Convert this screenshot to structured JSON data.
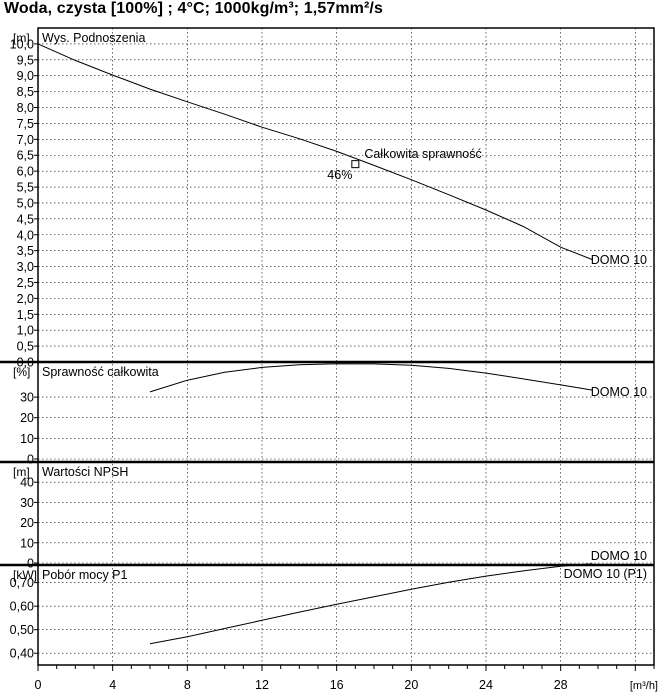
{
  "page": {
    "title": "Woda, czysta [100%] ; 4°C; 1000kg/m³; 1,57mm²/s"
  },
  "colors": {
    "line": "#000000",
    "frame": "#000000",
    "grid": "#000000"
  },
  "chart_data": {
    "type": "line",
    "x_axis": {
      "unit": "[m³/h]",
      "range": [
        0,
        33
      ],
      "tick_labels": [
        "0",
        "4",
        "8",
        "12",
        "16",
        "20",
        "24",
        "28"
      ],
      "tick_values": [
        0,
        4,
        8,
        12,
        16,
        20,
        24,
        28
      ]
    },
    "panels": [
      {
        "id": "head",
        "label": "Wys. Podnoszenia",
        "unit": "[m]",
        "ylim": [
          0,
          10.5
        ],
        "tick_labels": [
          "0,0",
          "0,5",
          "1,0",
          "1,5",
          "2,0",
          "2,5",
          "3,0",
          "3,5",
          "4,0",
          "4,5",
          "5,0",
          "5,5",
          "6,0",
          "6,5",
          "7,0",
          "7,5",
          "8,0",
          "8,5",
          "9,0",
          "9,5",
          "10,0"
        ],
        "tick_values": [
          0,
          0.5,
          1,
          1.5,
          2,
          2.5,
          3,
          3.5,
          4,
          4.5,
          5,
          5.5,
          6,
          6.5,
          7,
          7.5,
          8,
          8.5,
          9,
          9.5,
          10
        ],
        "series": [
          {
            "name": "DOMO 10",
            "x": [
              0,
              2,
              4,
              6,
              8,
              10,
              12,
              14,
              16,
              18,
              20,
              22,
              24,
              26,
              28,
              29.7
            ],
            "y": [
              10.0,
              9.48,
              9.02,
              8.58,
              8.18,
              7.79,
              7.38,
              7.02,
              6.62,
              6.18,
              5.73,
              5.26,
              4.78,
              4.26,
              3.61,
              3.22
            ]
          }
        ],
        "annotations": [
          {
            "text": "Całkowita sprawność",
            "x": 17,
            "y": 6.22,
            "marker": "square"
          },
          {
            "text": "46%",
            "x": 17,
            "y": 6.22
          }
        ]
      },
      {
        "id": "efficiency",
        "label": "Sprawność całkowita",
        "unit": "[%]",
        "ylim": [
          0,
          47
        ],
        "tick_labels": [
          "0",
          "10",
          "20",
          "30"
        ],
        "tick_values": [
          0,
          10,
          20,
          30
        ],
        "series": [
          {
            "name": "DOMO 10",
            "x": [
              6,
              8,
              10,
              12,
              14,
              16,
              18,
              20,
              22,
              24,
              26,
              28,
              29.7
            ],
            "y": [
              32.5,
              38.2,
              42.0,
              44.4,
              45.7,
              46.2,
              46.1,
              45.4,
              43.9,
              41.6,
              38.8,
              35.9,
              33.4
            ]
          }
        ]
      },
      {
        "id": "npsh",
        "label": "Wartości NPSH",
        "unit": "[m]",
        "ylim": [
          0,
          50
        ],
        "tick_labels": [
          "0",
          "10",
          "20",
          "30",
          "40"
        ],
        "tick_values": [
          0,
          10,
          20,
          30,
          40
        ],
        "series": [
          {
            "name": "DOMO 10",
            "x": [],
            "y": []
          }
        ]
      },
      {
        "id": "power",
        "label": "Pobór mocy P1",
        "unit": "[kW]",
        "ylim": [
          0.35,
          0.775
        ],
        "tick_labels": [
          "0,40",
          "0,50",
          "0,60",
          "0,70"
        ],
        "tick_values": [
          0.4,
          0.5,
          0.6,
          0.7
        ],
        "series": [
          {
            "name": "DOMO 10 (P1)",
            "x": [
              6,
              8,
              10,
              12,
              14,
              16,
              18,
              20,
              22,
              24,
              26,
              28,
              29.7
            ],
            "y": [
              0.44,
              0.47,
              0.505,
              0.54,
              0.575,
              0.608,
              0.64,
              0.672,
              0.702,
              0.728,
              0.75,
              0.77,
              0.78
            ]
          }
        ]
      }
    ]
  }
}
